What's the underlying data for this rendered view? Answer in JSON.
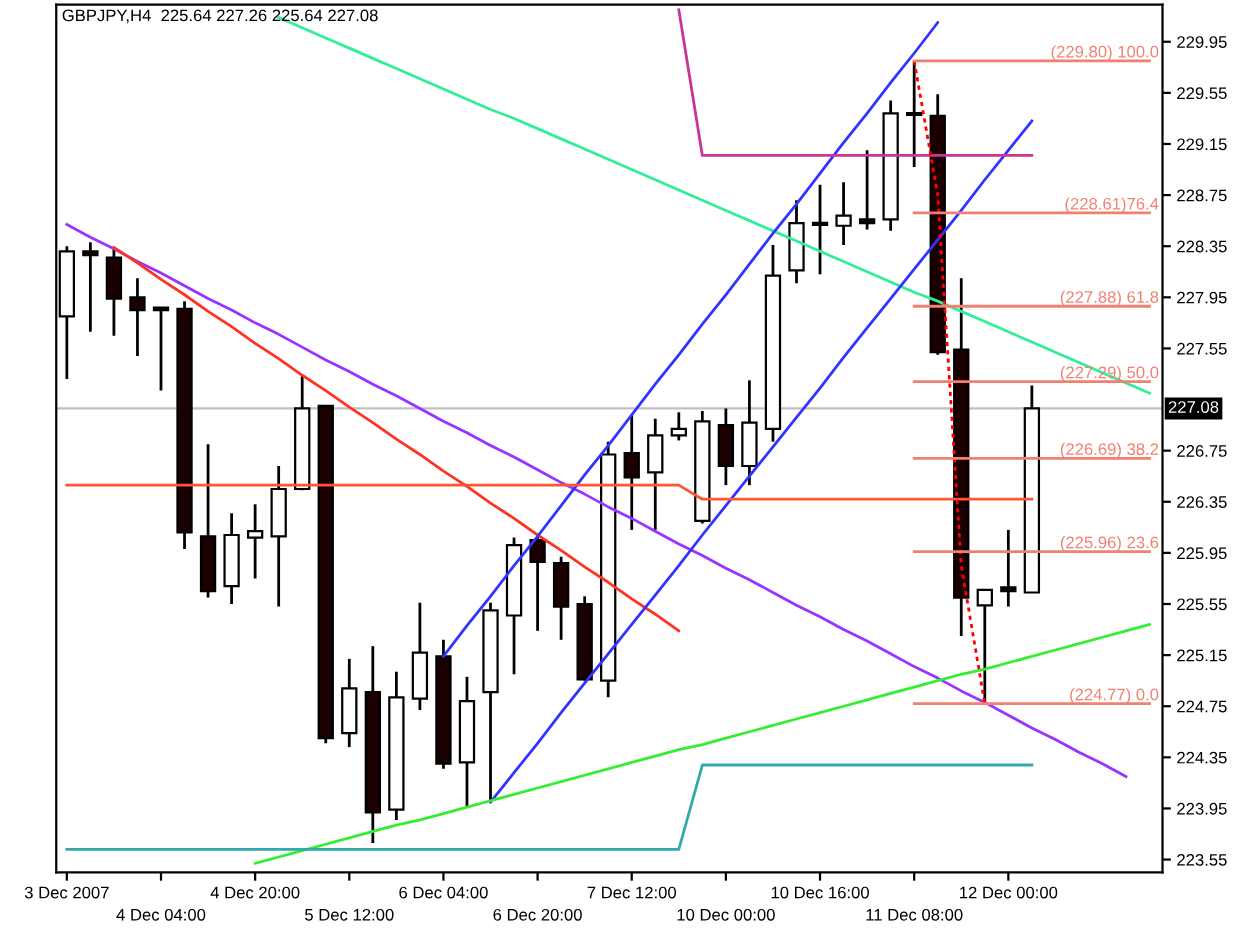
{
  "chart_data": {
    "type": "candlestick",
    "title": "GBPJPY,H4  225.64 227.26 225.64 227.08",
    "categories": [
      "3 Dec 2007",
      null,
      null,
      null,
      "4 Dec 04:00",
      null,
      null,
      null,
      "4 Dec 20:00",
      null,
      null,
      null,
      "5 Dec 12:00",
      null,
      null,
      null,
      "6 Dec 04:00",
      null,
      null,
      null,
      "6 Dec 20:00",
      null,
      null,
      null,
      "7 Dec 12:00",
      null,
      null,
      null,
      "10 Dec 00:00",
      null,
      null,
      null,
      "10 Dec 16:00",
      null,
      null,
      null,
      "11 Dec 08:00",
      null,
      null,
      null,
      "12 Dec 00:00",
      null,
      null,
      null,
      null,
      null,
      null
    ],
    "ohlc": [
      [
        227.8,
        228.35,
        227.31,
        228.31
      ],
      [
        228.31,
        228.38,
        227.68,
        228.28
      ],
      [
        228.26,
        228.34,
        227.65,
        227.94
      ],
      [
        227.95,
        228.1,
        227.49,
        227.85
      ],
      [
        227.87,
        227.87,
        227.22,
        227.85
      ],
      [
        227.86,
        227.92,
        225.98,
        226.11
      ],
      [
        226.08,
        226.8,
        225.6,
        225.65
      ],
      [
        225.69,
        226.26,
        225.55,
        226.09
      ],
      [
        226.07,
        226.33,
        225.75,
        226.12
      ],
      [
        226.08,
        226.63,
        225.53,
        226.45
      ],
      [
        226.45,
        227.34,
        226.44,
        227.08
      ],
      [
        227.1,
        227.1,
        224.46,
        224.5
      ],
      [
        224.54,
        225.12,
        224.43,
        224.89
      ],
      [
        224.86,
        225.22,
        223.68,
        223.92
      ],
      [
        223.94,
        225.02,
        223.86,
        224.82
      ],
      [
        224.81,
        225.56,
        224.72,
        225.17
      ],
      [
        225.14,
        225.27,
        224.26,
        224.3
      ],
      [
        224.31,
        224.98,
        223.96,
        224.79
      ],
      [
        224.86,
        225.56,
        224.0,
        225.5
      ],
      [
        225.46,
        226.07,
        225.0,
        226.01
      ],
      [
        226.05,
        226.08,
        225.34,
        225.88
      ],
      [
        225.87,
        225.92,
        225.27,
        225.53
      ],
      [
        225.55,
        225.61,
        224.95,
        224.96
      ],
      [
        224.95,
        226.82,
        224.82,
        226.72
      ],
      [
        226.73,
        227.03,
        226.13,
        226.54
      ],
      [
        226.58,
        227.0,
        226.13,
        226.87
      ],
      [
        226.87,
        227.05,
        226.83,
        226.92
      ],
      [
        226.2,
        227.06,
        226.18,
        226.98
      ],
      [
        226.95,
        227.08,
        226.48,
        226.63
      ],
      [
        226.63,
        227.3,
        226.48,
        226.97
      ],
      [
        226.92,
        228.36,
        226.82,
        228.12
      ],
      [
        228.16,
        228.71,
        228.06,
        228.53
      ],
      [
        228.52,
        228.83,
        228.13,
        228.53
      ],
      [
        228.51,
        228.85,
        228.36,
        228.59
      ],
      [
        228.56,
        229.1,
        228.48,
        228.53
      ],
      [
        228.56,
        229.49,
        228.47,
        229.39
      ],
      [
        229.39,
        229.8,
        228.97,
        229.38
      ],
      [
        229.37,
        229.54,
        227.5,
        227.52
      ],
      [
        227.54,
        228.1,
        225.3,
        225.6
      ],
      [
        225.54,
        225.66,
        224.77,
        225.66
      ],
      [
        225.68,
        226.13,
        225.53,
        225.65
      ],
      [
        225.64,
        227.26,
        225.64,
        227.08
      ],
      null,
      null,
      null,
      null,
      null
    ],
    "series": [
      {
        "type": "line",
        "color": "#33ee99",
        "values": [
          null,
          null,
          null,
          null,
          null,
          null,
          null,
          null,
          null,
          230.14,
          230.06,
          229.98,
          229.9,
          229.82,
          229.74,
          229.66,
          229.58,
          229.5,
          229.42,
          229.35,
          229.27,
          229.19,
          229.11,
          229.03,
          228.95,
          228.87,
          228.79,
          228.71,
          228.63,
          228.55,
          228.47,
          228.39,
          228.31,
          228.23,
          228.15,
          228.07,
          227.99,
          227.92,
          227.84,
          227.76,
          227.68,
          227.6,
          227.52,
          227.44,
          227.36,
          227.28,
          227.2
        ]
      },
      {
        "type": "line",
        "color": "#9933ff",
        "values": [
          228.52,
          228.42,
          228.33,
          228.23,
          228.14,
          228.04,
          227.94,
          227.85,
          227.75,
          227.66,
          227.56,
          227.46,
          227.37,
          227.27,
          227.18,
          227.08,
          226.98,
          226.89,
          226.79,
          226.7,
          226.6,
          226.5,
          226.41,
          226.31,
          226.22,
          226.12,
          226.02,
          225.93,
          225.83,
          225.74,
          225.64,
          225.54,
          225.45,
          225.35,
          225.26,
          225.16,
          225.06,
          224.97,
          224.87,
          224.78,
          224.68,
          224.58,
          224.49,
          224.39,
          224.3,
          224.2,
          null
        ]
      },
      {
        "type": "line",
        "color": "#ff3322",
        "values": [
          null,
          null,
          228.34,
          228.22,
          228.09,
          227.97,
          227.84,
          227.72,
          227.59,
          227.47,
          227.34,
          227.22,
          227.09,
          226.97,
          226.84,
          226.72,
          226.59,
          226.47,
          226.34,
          226.22,
          226.09,
          225.97,
          225.84,
          225.72,
          225.59,
          225.47,
          225.34,
          null,
          null,
          null,
          null,
          null,
          null,
          null,
          null,
          null,
          null,
          null,
          null,
          null,
          null,
          null,
          null,
          null,
          null,
          null,
          null
        ]
      },
      {
        "type": "line",
        "color": "#3333ff",
        "values": [
          null,
          null,
          null,
          null,
          null,
          null,
          null,
          null,
          null,
          null,
          null,
          null,
          null,
          null,
          null,
          null,
          225.14,
          225.38,
          225.61,
          225.85,
          226.08,
          226.32,
          226.56,
          226.79,
          227.03,
          227.27,
          227.5,
          227.74,
          227.97,
          228.21,
          228.45,
          228.68,
          228.92,
          229.16,
          229.39,
          229.63,
          229.86,
          230.1,
          null,
          null,
          null,
          null,
          null,
          null,
          null,
          null,
          null
        ]
      },
      {
        "type": "line",
        "color": "#3333ff",
        "values": [
          null,
          null,
          null,
          null,
          null,
          null,
          null,
          null,
          null,
          null,
          null,
          null,
          null,
          null,
          null,
          null,
          null,
          null,
          224.0,
          224.23,
          224.46,
          224.7,
          224.93,
          225.16,
          225.39,
          225.62,
          225.85,
          226.09,
          226.32,
          226.55,
          226.78,
          227.01,
          227.24,
          227.48,
          227.71,
          227.94,
          228.17,
          228.4,
          228.63,
          228.87,
          229.1,
          229.33,
          null,
          null,
          null,
          null,
          null
        ]
      },
      {
        "type": "line",
        "color": "#33ee33",
        "values": [
          null,
          null,
          null,
          null,
          null,
          null,
          null,
          null,
          223.52,
          223.57,
          223.62,
          223.67,
          223.72,
          223.77,
          223.82,
          223.86,
          223.91,
          223.96,
          224.01,
          224.06,
          224.11,
          224.16,
          224.21,
          224.26,
          224.31,
          224.36,
          224.41,
          224.45,
          224.5,
          224.55,
          224.6,
          224.65,
          224.7,
          224.75,
          224.8,
          224.85,
          224.9,
          224.95,
          225.0,
          225.04,
          225.09,
          225.14,
          225.19,
          225.24,
          225.29,
          225.34,
          225.39
        ]
      },
      {
        "type": "line",
        "color": "#ff5533",
        "values": [
          226.48,
          226.48,
          226.48,
          226.48,
          226.48,
          226.48,
          226.48,
          226.48,
          226.48,
          226.48,
          226.48,
          226.48,
          226.48,
          226.48,
          226.48,
          226.48,
          226.48,
          226.48,
          226.48,
          226.48,
          226.48,
          226.48,
          226.48,
          226.48,
          226.48,
          226.48,
          226.48,
          226.37,
          226.37,
          226.37,
          226.37,
          226.37,
          226.37,
          226.37,
          226.37,
          226.37,
          226.37,
          226.37,
          226.37,
          226.37,
          226.37,
          226.37,
          null,
          null,
          null,
          null,
          null
        ]
      },
      {
        "type": "line",
        "color": "#cc3399",
        "values": [
          null,
          null,
          null,
          null,
          null,
          null,
          null,
          null,
          null,
          null,
          null,
          null,
          null,
          null,
          null,
          null,
          null,
          null,
          null,
          null,
          null,
          null,
          null,
          null,
          null,
          null,
          230.2,
          229.06,
          229.06,
          229.06,
          229.06,
          229.06,
          229.06,
          229.06,
          229.06,
          229.06,
          229.06,
          229.06,
          229.06,
          229.06,
          229.06,
          229.06,
          null,
          null,
          null,
          null,
          null
        ]
      },
      {
        "type": "line",
        "color": "#33aaaa",
        "values": [
          223.63,
          223.63,
          223.63,
          223.63,
          223.63,
          223.63,
          223.63,
          223.63,
          223.63,
          223.63,
          223.63,
          223.63,
          223.63,
          223.63,
          223.63,
          223.63,
          223.63,
          223.63,
          223.63,
          223.63,
          223.63,
          223.63,
          223.63,
          223.63,
          223.63,
          223.63,
          223.63,
          224.29,
          224.29,
          224.29,
          224.29,
          224.29,
          224.29,
          224.29,
          224.29,
          224.29,
          224.29,
          224.29,
          224.29,
          224.29,
          224.29,
          224.29,
          null,
          null,
          null,
          null,
          null
        ]
      },
      {
        "type": "line",
        "color": "#ff0000",
        "line_style": "dotted",
        "values": [
          null,
          null,
          null,
          null,
          null,
          null,
          null,
          null,
          null,
          null,
          null,
          null,
          null,
          null,
          null,
          null,
          null,
          null,
          null,
          null,
          null,
          null,
          null,
          null,
          null,
          null,
          null,
          null,
          null,
          null,
          null,
          null,
          null,
          null,
          null,
          null,
          229.8,
          228.75,
          225.85,
          224.77,
          null,
          null,
          null,
          null,
          null,
          null,
          null
        ]
      },
      {
        "type": "line",
        "color": "#f08070",
        "name": "(229.80) 100.0",
        "values": [
          null,
          null,
          null,
          null,
          null,
          null,
          null,
          null,
          null,
          null,
          null,
          null,
          null,
          null,
          null,
          null,
          null,
          null,
          null,
          null,
          null,
          null,
          null,
          null,
          null,
          null,
          null,
          null,
          null,
          null,
          null,
          null,
          null,
          null,
          null,
          null,
          229.8,
          229.8,
          229.8,
          229.8,
          229.8,
          229.8,
          229.8,
          229.8,
          229.8,
          229.8,
          229.8
        ]
      },
      {
        "type": "line",
        "color": "#f08070",
        "name": "(228.61)76.4",
        "values": [
          null,
          null,
          null,
          null,
          null,
          null,
          null,
          null,
          null,
          null,
          null,
          null,
          null,
          null,
          null,
          null,
          null,
          null,
          null,
          null,
          null,
          null,
          null,
          null,
          null,
          null,
          null,
          null,
          null,
          null,
          null,
          null,
          null,
          null,
          null,
          null,
          228.61,
          228.61,
          228.61,
          228.61,
          228.61,
          228.61,
          228.61,
          228.61,
          228.61,
          228.61,
          228.61
        ]
      },
      {
        "type": "line",
        "color": "#f08070",
        "name": "(227.88) 61.8",
        "values": [
          null,
          null,
          null,
          null,
          null,
          null,
          null,
          null,
          null,
          null,
          null,
          null,
          null,
          null,
          null,
          null,
          null,
          null,
          null,
          null,
          null,
          null,
          null,
          null,
          null,
          null,
          null,
          null,
          null,
          null,
          null,
          null,
          null,
          null,
          null,
          null,
          227.88,
          227.88,
          227.88,
          227.88,
          227.88,
          227.88,
          227.88,
          227.88,
          227.88,
          227.88,
          227.88
        ]
      },
      {
        "type": "line",
        "color": "#f08070",
        "name": "(227.29) 50.0",
        "values": [
          null,
          null,
          null,
          null,
          null,
          null,
          null,
          null,
          null,
          null,
          null,
          null,
          null,
          null,
          null,
          null,
          null,
          null,
          null,
          null,
          null,
          null,
          null,
          null,
          null,
          null,
          null,
          null,
          null,
          null,
          null,
          null,
          null,
          null,
          null,
          null,
          227.29,
          227.29,
          227.29,
          227.29,
          227.29,
          227.29,
          227.29,
          227.29,
          227.29,
          227.29,
          227.29
        ]
      },
      {
        "type": "line",
        "color": "#f08070",
        "name": "(226.69) 38.2",
        "values": [
          null,
          null,
          null,
          null,
          null,
          null,
          null,
          null,
          null,
          null,
          null,
          null,
          null,
          null,
          null,
          null,
          null,
          null,
          null,
          null,
          null,
          null,
          null,
          null,
          null,
          null,
          null,
          null,
          null,
          null,
          null,
          null,
          null,
          null,
          null,
          null,
          226.69,
          226.69,
          226.69,
          226.69,
          226.69,
          226.69,
          226.69,
          226.69,
          226.69,
          226.69,
          226.69
        ]
      },
      {
        "type": "line",
        "color": "#f08070",
        "name": "(225.96) 23.6",
        "values": [
          null,
          null,
          null,
          null,
          null,
          null,
          null,
          null,
          null,
          null,
          null,
          null,
          null,
          null,
          null,
          null,
          null,
          null,
          null,
          null,
          null,
          null,
          null,
          null,
          null,
          null,
          null,
          null,
          null,
          null,
          null,
          null,
          null,
          null,
          null,
          null,
          225.96,
          225.96,
          225.96,
          225.96,
          225.96,
          225.96,
          225.96,
          225.96,
          225.96,
          225.96,
          225.96
        ]
      },
      {
        "type": "line",
        "color": "#f08070",
        "name": "(224.77) 0.0",
        "values": [
          null,
          null,
          null,
          null,
          null,
          null,
          null,
          null,
          null,
          null,
          null,
          null,
          null,
          null,
          null,
          null,
          null,
          null,
          null,
          null,
          null,
          null,
          null,
          null,
          null,
          null,
          null,
          null,
          null,
          null,
          null,
          null,
          null,
          null,
          null,
          null,
          224.77,
          224.77,
          224.77,
          224.77,
          224.77,
          224.77,
          224.77,
          224.77,
          224.77,
          224.77,
          224.77
        ]
      }
    ],
    "ref_lines": [
      {
        "axis": "y",
        "value": 227.08,
        "label": "227.08",
        "color": "#c0c0c0"
      }
    ],
    "ylim": [
      223.45,
      230.24
    ],
    "yticks": [
      229.95,
      229.55,
      229.15,
      228.75,
      228.35,
      227.95,
      227.55,
      226.75,
      226.35,
      225.95,
      225.55,
      225.15,
      224.75,
      224.35,
      223.95,
      223.55
    ]
  }
}
